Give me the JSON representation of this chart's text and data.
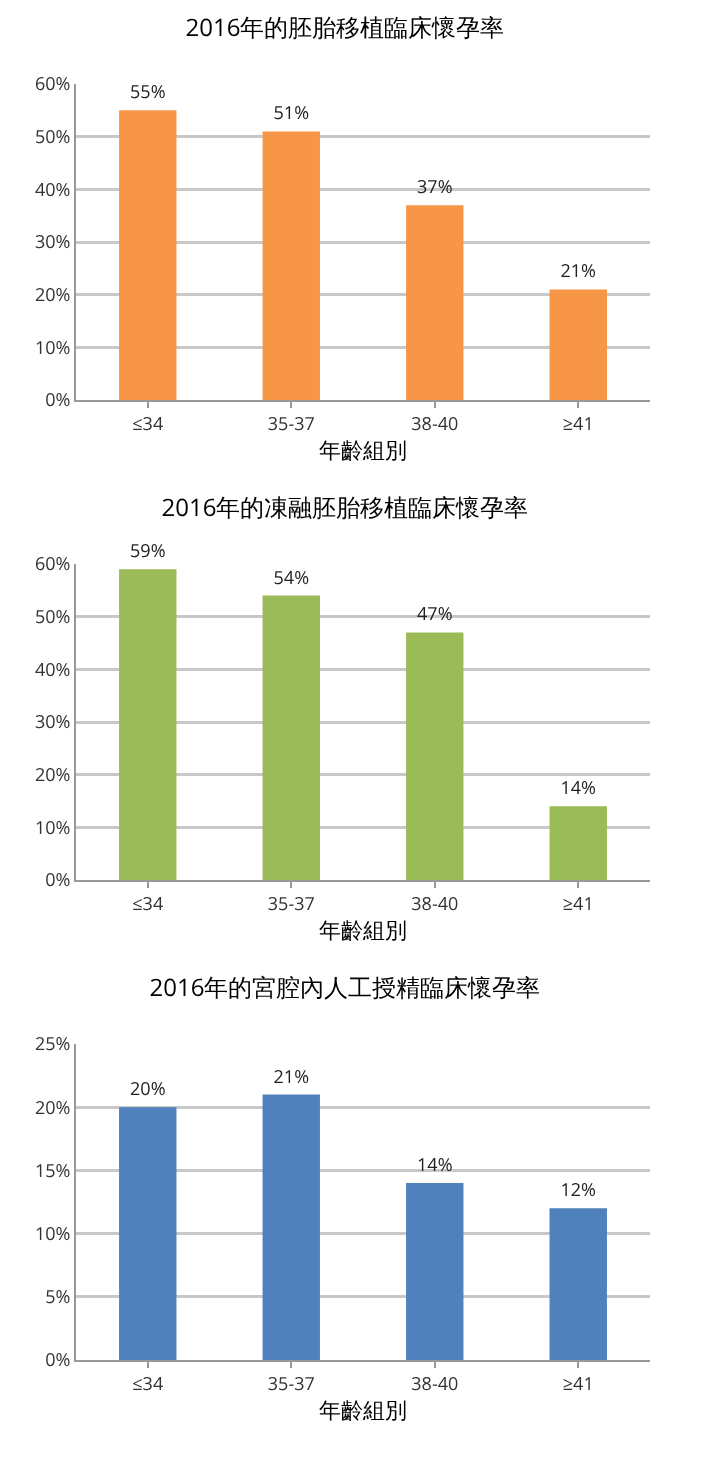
{
  "chart_data": [
    {
      "type": "bar",
      "title": "2016年的胚胎移植臨床懷孕率",
      "xlabel": "年齡組別",
      "categories": [
        "≤34",
        "35-37",
        "38-40",
        "≥41"
      ],
      "values": [
        55,
        51,
        37,
        21
      ],
      "value_labels": [
        "55%",
        "51%",
        "37%",
        "21%"
      ],
      "color": "#f79646",
      "ylim": [
        0,
        60
      ],
      "yticks": [
        {
          "value": 0,
          "label": "0%"
        },
        {
          "value": 10,
          "label": "10%"
        },
        {
          "value": 20,
          "label": "20%"
        },
        {
          "value": 30,
          "label": "30%"
        },
        {
          "value": 40,
          "label": "40%"
        },
        {
          "value": 50,
          "label": "50%"
        },
        {
          "value": 60,
          "label": "60%"
        }
      ],
      "grid": "y",
      "legend": false
    },
    {
      "type": "bar",
      "title": "2016年的凍融胚胎移植臨床懷孕率",
      "xlabel": "年齡組別",
      "categories": [
        "≤34",
        "35-37",
        "38-40",
        "≥41"
      ],
      "values": [
        59,
        54,
        47,
        14
      ],
      "value_labels": [
        "59%",
        "54%",
        "47%",
        "14%"
      ],
      "color": "#9bbb59",
      "ylim": [
        0,
        60
      ],
      "yticks": [
        {
          "value": 0,
          "label": "0%"
        },
        {
          "value": 10,
          "label": "10%"
        },
        {
          "value": 20,
          "label": "20%"
        },
        {
          "value": 30,
          "label": "30%"
        },
        {
          "value": 40,
          "label": "40%"
        },
        {
          "value": 50,
          "label": "50%"
        },
        {
          "value": 60,
          "label": "60%"
        }
      ],
      "grid": "y",
      "legend": false
    },
    {
      "type": "bar",
      "title": "2016年的宮腔內人工授精臨床懷孕率",
      "xlabel": "年齡組別",
      "categories": [
        "≤34",
        "35-37",
        "38-40",
        "≥41"
      ],
      "values": [
        20,
        21,
        14,
        12
      ],
      "value_labels": [
        "20%",
        "21%",
        "14%",
        "12%"
      ],
      "color": "#4f81bd",
      "ylim": [
        0,
        25
      ],
      "yticks": [
        {
          "value": 0,
          "label": "0%"
        },
        {
          "value": 5,
          "label": "5%"
        },
        {
          "value": 10,
          "label": "10%"
        },
        {
          "value": 15,
          "label": "15%"
        },
        {
          "value": 20,
          "label": "20%"
        },
        {
          "value": 25,
          "label": "25%"
        }
      ],
      "grid": "y",
      "legend": false
    }
  ]
}
